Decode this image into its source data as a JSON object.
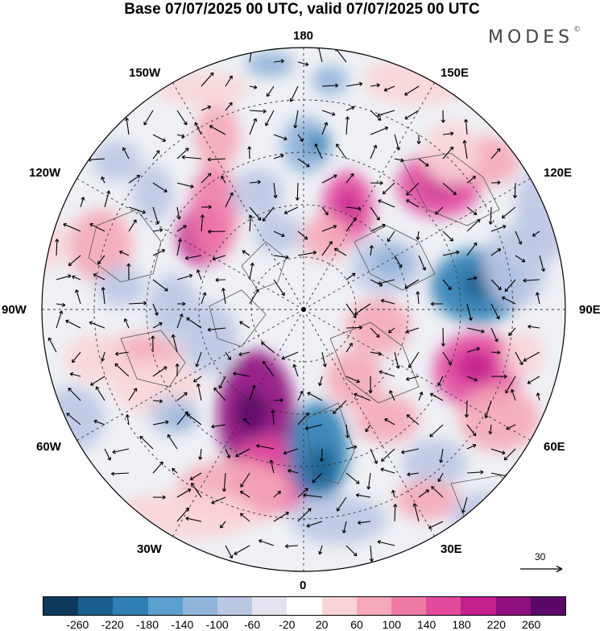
{
  "title": "Base 07/07/2025 00 UTC, valid 07/07/2025 00 UTC",
  "brand": {
    "name": "MODES",
    "mark": "©"
  },
  "map": {
    "projection": "north polar stereographic",
    "center": "North Pole",
    "graticule": "dashed, every 30° longitude and 15° latitude",
    "longitude_labels": [
      "180",
      "150E",
      "120E",
      "90E",
      "60E",
      "30E",
      "0",
      "30W",
      "60W",
      "90W",
      "120W",
      "150W"
    ],
    "field": "geopotential height anomaly with wind vectors",
    "reference_vector": {
      "label": "30"
    }
  },
  "colorbar": {
    "colors": [
      "#0d3a5c",
      "#1a5f8e",
      "#2f7fb5",
      "#5b9fcf",
      "#8fb3d9",
      "#bcc7e4",
      "#e4e4f0",
      "#ffffff",
      "#f9d5d8",
      "#f5a9b8",
      "#f07ba7",
      "#e34a9e",
      "#c41e8f",
      "#8f0f7e",
      "#5a0a66"
    ],
    "ticks": [
      "-260",
      "-220",
      "-180",
      "-140",
      "-100",
      "-60",
      "-20",
      "20",
      "60",
      "100",
      "140",
      "180",
      "220",
      "260"
    ]
  }
}
